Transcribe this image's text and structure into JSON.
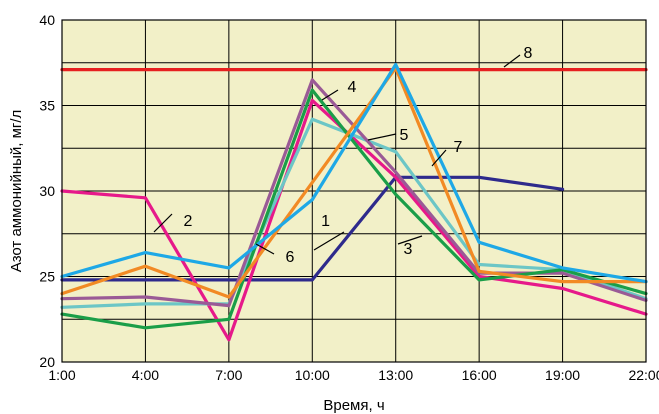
{
  "chart_data": {
    "type": "line",
    "xlabel": "Время, ч",
    "ylabel": "Азот аммонийный, мг/л",
    "x": [
      "1:00",
      "4:00",
      "7:00",
      "10:00",
      "13:00",
      "16:00",
      "19:00",
      "22:00"
    ],
    "ylim": [
      20,
      40
    ],
    "yticks": [
      20,
      25,
      30,
      35,
      40
    ],
    "grid": true,
    "plot_background": "#f2f0c8",
    "series": [
      {
        "name": "1",
        "color": "#2e2a8c",
        "values": [
          24.8,
          24.8,
          24.8,
          24.8,
          30.8,
          30.8,
          30.1,
          null
        ]
      },
      {
        "name": "2",
        "color": "#e6198a",
        "values": [
          30.0,
          29.6,
          21.3,
          35.3,
          30.8,
          25.0,
          24.3,
          22.8
        ]
      },
      {
        "name": "3",
        "color": "#1a9e48",
        "values": [
          22.8,
          22.0,
          22.5,
          35.9,
          29.8,
          24.8,
          25.4,
          24.0
        ]
      },
      {
        "name": "4",
        "color": "#9a5a96",
        "values": [
          23.7,
          23.8,
          23.3,
          36.5,
          31.1,
          25.2,
          25.2,
          23.6
        ]
      },
      {
        "name": "5",
        "color": "#f28a24",
        "values": [
          24.0,
          25.6,
          23.8,
          30.5,
          37.2,
          25.3,
          24.7,
          24.7
        ]
      },
      {
        "name": "6",
        "color": "#1ea8e6",
        "values": [
          25.0,
          26.4,
          25.5,
          29.5,
          37.4,
          27.0,
          25.5,
          24.7
        ]
      },
      {
        "name": "7",
        "color": "#6cc6c6",
        "values": [
          23.2,
          23.4,
          23.4,
          34.2,
          32.3,
          25.7,
          25.4,
          23.7
        ]
      },
      {
        "name": "8",
        "color": "#e62020",
        "values": [
          37.1,
          37.1,
          37.1,
          37.1,
          37.1,
          37.1,
          37.1,
          37.1
        ]
      }
    ]
  }
}
